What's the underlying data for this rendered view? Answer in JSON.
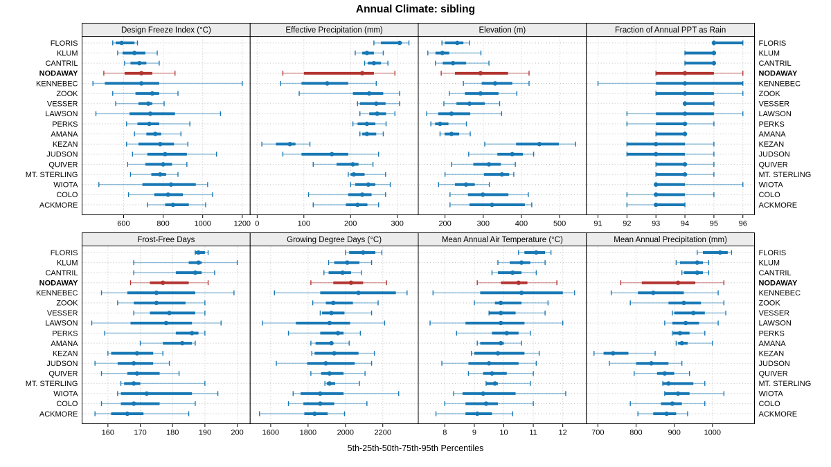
{
  "title": "Annual Climate: sibling",
  "caption": "5th-25th-50th-75th-95th Percentiles",
  "stations": [
    "FLORIS",
    "KLUM",
    "CANTRIL",
    "NODAWAY",
    "KENNEBEC",
    "ZOOK",
    "VESSER",
    "LAWSON",
    "PERKS",
    "AMANA",
    "KEZAN",
    "JUDSON",
    "QUIVER",
    "MT. STERLING",
    "WIOTA",
    "COLO",
    "ACKMORE"
  ],
  "highlight_station": "NODAWAY",
  "colors": {
    "normal": "#1878b4",
    "highlight": "#b23531",
    "header_bg": "#ececec",
    "grid": "#bdbdbd",
    "border": "#000000",
    "background": "#ffffff"
  },
  "chart_data": {
    "type": "percentile-dotplot",
    "percentiles": [
      5,
      25,
      50,
      75,
      95
    ],
    "legend_position": "none",
    "grid": "dotted",
    "panels": [
      {
        "title": "Design Freeze Index (°C)",
        "row": 0,
        "col": 0,
        "domain": [
          390,
          1240
        ],
        "ticks": [
          600,
          800,
          1000,
          1200
        ],
        "values": [
          [
            545,
            560,
            590,
            655,
            670
          ],
          [
            570,
            595,
            655,
            710,
            770
          ],
          [
            605,
            635,
            680,
            715,
            780
          ],
          [
            500,
            605,
            690,
            745,
            860
          ],
          [
            445,
            505,
            690,
            780,
            1200
          ],
          [
            545,
            660,
            745,
            780,
            875
          ],
          [
            560,
            675,
            725,
            745,
            805
          ],
          [
            460,
            630,
            735,
            860,
            1090
          ],
          [
            615,
            670,
            730,
            780,
            935
          ],
          [
            655,
            715,
            760,
            790,
            890
          ],
          [
            615,
            675,
            785,
            855,
            925
          ],
          [
            645,
            720,
            810,
            920,
            1070
          ],
          [
            620,
            710,
            800,
            845,
            920
          ],
          [
            635,
            740,
            785,
            815,
            875
          ],
          [
            475,
            695,
            840,
            965,
            1025
          ],
          [
            625,
            755,
            825,
            900,
            1050
          ],
          [
            720,
            810,
            850,
            930,
            1015
          ]
        ]
      },
      {
        "title": "Effective Precipitation (mm)",
        "row": 0,
        "col": 1,
        "domain": [
          -15,
          345
        ],
        "ticks": [
          0,
          100,
          200,
          300
        ],
        "values": [
          [
            250,
            265,
            305,
            310,
            325
          ],
          [
            210,
            225,
            235,
            250,
            270
          ],
          [
            230,
            237,
            250,
            265,
            280
          ],
          [
            55,
            100,
            225,
            250,
            295
          ],
          [
            50,
            95,
            150,
            195,
            255
          ],
          [
            90,
            205,
            240,
            270,
            305
          ],
          [
            215,
            220,
            255,
            275,
            305
          ],
          [
            220,
            240,
            257,
            276,
            295
          ],
          [
            205,
            215,
            235,
            253,
            276
          ],
          [
            220,
            225,
            235,
            255,
            270
          ],
          [
            10,
            40,
            70,
            82,
            113
          ],
          [
            55,
            95,
            160,
            195,
            260
          ],
          [
            120,
            170,
            205,
            217,
            248
          ],
          [
            195,
            200,
            207,
            230,
            275
          ],
          [
            200,
            210,
            238,
            253,
            285
          ],
          [
            110,
            195,
            225,
            245,
            275
          ],
          [
            120,
            190,
            215,
            236,
            260
          ]
        ]
      },
      {
        "title": "Elevation (m)",
        "row": 0,
        "col": 2,
        "domain": [
          130,
          570
        ],
        "ticks": [
          200,
          300,
          400,
          500
        ],
        "values": [
          [
            192,
            200,
            232,
            248,
            264
          ],
          [
            155,
            175,
            193,
            211,
            294
          ],
          [
            175,
            194,
            221,
            255,
            315
          ],
          [
            190,
            226,
            293,
            365,
            420
          ],
          [
            248,
            296,
            331,
            376,
            420
          ],
          [
            211,
            252,
            293,
            340,
            388
          ],
          [
            197,
            230,
            264,
            304,
            343
          ],
          [
            152,
            182,
            217,
            266,
            348
          ],
          [
            163,
            174,
            187,
            209,
            256
          ],
          [
            187,
            199,
            217,
            237,
            266
          ],
          [
            304,
            386,
            447,
            498,
            542
          ],
          [
            262,
            337,
            376,
            404,
            432
          ],
          [
            217,
            274,
            315,
            346,
            384
          ],
          [
            200,
            302,
            349,
            368,
            380
          ],
          [
            183,
            226,
            255,
            278,
            316
          ],
          [
            213,
            260,
            299,
            366,
            418
          ],
          [
            213,
            264,
            323,
            409,
            427
          ]
        ]
      },
      {
        "title": "Fraction of Annual PPT as Rain",
        "row": 0,
        "col": 3,
        "domain": [
          90.6,
          96.4
        ],
        "ticks": [
          91,
          92,
          93,
          94,
          95,
          96
        ],
        "values": [
          [
            95,
            95,
            95,
            96,
            96
          ],
          [
            94,
            94,
            95,
            95,
            95
          ],
          [
            94,
            94,
            95,
            95,
            95
          ],
          [
            93,
            93,
            94,
            95,
            96
          ],
          [
            91,
            93,
            94,
            96,
            96
          ],
          [
            93,
            93,
            94,
            95,
            96
          ],
          [
            94,
            94,
            94,
            95,
            95
          ],
          [
            92,
            93,
            94,
            95,
            96
          ],
          [
            92,
            93,
            94,
            94,
            95
          ],
          [
            93,
            93,
            94,
            94,
            94
          ],
          [
            92,
            92,
            93,
            94,
            95
          ],
          [
            92,
            92,
            93,
            94,
            95
          ],
          [
            93,
            93,
            94,
            94,
            95
          ],
          [
            93,
            93,
            94,
            94,
            95
          ],
          [
            93,
            93,
            93,
            94,
            96
          ],
          [
            92,
            93,
            93,
            94,
            95
          ],
          [
            92,
            93,
            93,
            94,
            94
          ]
        ]
      },
      {
        "title": "Frost-Free Days",
        "row": 1,
        "col": 0,
        "domain": [
          152,
          204
        ],
        "ticks": [
          160,
          170,
          180,
          190,
          200
        ],
        "values": [
          [
            187,
            187,
            188,
            190,
            191
          ],
          [
            168,
            185,
            188,
            189,
            200
          ],
          [
            168,
            181,
            187,
            189,
            193
          ],
          [
            167,
            173,
            177,
            185,
            191
          ],
          [
            158,
            166,
            175,
            187,
            199
          ],
          [
            163,
            168,
            175,
            184,
            190
          ],
          [
            168,
            173,
            179,
            187,
            190
          ],
          [
            155,
            167,
            178,
            186,
            195
          ],
          [
            159,
            181,
            186,
            188,
            190
          ],
          [
            170,
            177,
            183,
            186,
            187
          ],
          [
            160,
            161,
            169,
            174,
            177
          ],
          [
            156,
            163,
            168,
            174,
            179
          ],
          [
            158,
            166,
            169,
            176,
            182
          ],
          [
            164,
            165,
            168,
            170,
            190
          ],
          [
            163,
            164,
            172,
            186,
            194
          ],
          [
            158,
            164,
            168,
            176,
            187
          ],
          [
            156,
            161,
            166,
            171,
            185
          ]
        ]
      },
      {
        "title": "Growing Degree Days (°C)",
        "row": 1,
        "col": 1,
        "domain": [
          1490,
          2390
        ],
        "ticks": [
          1600,
          1800,
          2000,
          2200
        ],
        "values": [
          [
            2000,
            2020,
            2095,
            2160,
            2195
          ],
          [
            1910,
            1940,
            2010,
            2075,
            2140
          ],
          [
            1885,
            1910,
            1985,
            2030,
            2085
          ],
          [
            1815,
            1935,
            2030,
            2095,
            2220
          ],
          [
            1620,
            1865,
            2070,
            2270,
            2330
          ],
          [
            1825,
            1895,
            1935,
            2040,
            2175
          ],
          [
            1865,
            1875,
            1925,
            1995,
            2140
          ],
          [
            1555,
            1735,
            1915,
            2025,
            2210
          ],
          [
            1695,
            1865,
            1960,
            1990,
            2080
          ],
          [
            1815,
            1840,
            1925,
            1935,
            2020
          ],
          [
            1820,
            1835,
            1940,
            2070,
            2155
          ],
          [
            1630,
            1795,
            1895,
            2050,
            2140
          ],
          [
            1815,
            1870,
            1915,
            1990,
            2105
          ],
          [
            1890,
            1900,
            1915,
            1945,
            2075
          ],
          [
            1720,
            1760,
            1865,
            1990,
            2285
          ],
          [
            1695,
            1775,
            1865,
            1940,
            2115
          ],
          [
            1540,
            1780,
            1835,
            1905,
            1995
          ]
        ]
      },
      {
        "title": "Mean Annual Air Temperature (°C)",
        "row": 1,
        "col": 2,
        "domain": [
          7.1,
          12.8
        ],
        "ticks": [
          8,
          9,
          10,
          11,
          12
        ],
        "values": [
          [
            10.5,
            10.7,
            11.1,
            11.4,
            11.6
          ],
          [
            9.8,
            10.2,
            10.6,
            10.9,
            11.4
          ],
          [
            9.6,
            9.8,
            10.3,
            10.6,
            11.1
          ],
          [
            9.1,
            9.9,
            10.5,
            10.8,
            11.8
          ],
          [
            7.6,
            9.2,
            10.6,
            12.0,
            12.4
          ],
          [
            9.0,
            9.7,
            9.9,
            10.6,
            11.5
          ],
          [
            9.5,
            9.5,
            9.9,
            10.4,
            11.4
          ],
          [
            7.5,
            8.7,
            9.9,
            10.7,
            12.0
          ],
          [
            8.4,
            9.6,
            10.1,
            10.5,
            10.9
          ],
          [
            9.1,
            9.2,
            9.9,
            10.0,
            10.6
          ],
          [
            8.9,
            9.0,
            9.8,
            10.7,
            11.2
          ],
          [
            7.9,
            8.8,
            9.5,
            10.5,
            11.1
          ],
          [
            8.8,
            9.3,
            9.6,
            10.1,
            11.0
          ],
          [
            9.4,
            9.4,
            9.7,
            9.8,
            10.9
          ],
          [
            8.3,
            8.6,
            9.3,
            10.4,
            12.1
          ],
          [
            8.0,
            8.7,
            9.4,
            9.8,
            11.0
          ],
          [
            7.7,
            8.7,
            9.1,
            9.6,
            10.3
          ]
        ]
      },
      {
        "title": "Mean Annual Precipitation (mm)",
        "row": 1,
        "col": 3,
        "domain": [
          670,
          1110
        ],
        "ticks": [
          700,
          800,
          900,
          1000
        ],
        "values": [
          [
            960,
            975,
            1020,
            1040,
            1050
          ],
          [
            905,
            915,
            960,
            975,
            990
          ],
          [
            920,
            925,
            960,
            975,
            990
          ],
          [
            760,
            815,
            910,
            955,
            1030
          ],
          [
            735,
            805,
            845,
            925,
            1015
          ],
          [
            785,
            885,
            925,
            970,
            1030
          ],
          [
            895,
            900,
            950,
            980,
            1035
          ],
          [
            875,
            895,
            930,
            965,
            1015
          ],
          [
            895,
            897,
            915,
            940,
            980
          ],
          [
            905,
            910,
            920,
            935,
            1000
          ],
          [
            690,
            715,
            740,
            780,
            850
          ],
          [
            730,
            800,
            840,
            885,
            920
          ],
          [
            795,
            855,
            875,
            900,
            940
          ],
          [
            870,
            870,
            885,
            950,
            980
          ],
          [
            875,
            875,
            910,
            940,
            1030
          ],
          [
            785,
            865,
            895,
            920,
            980
          ],
          [
            805,
            845,
            880,
            905,
            935
          ]
        ]
      }
    ]
  }
}
